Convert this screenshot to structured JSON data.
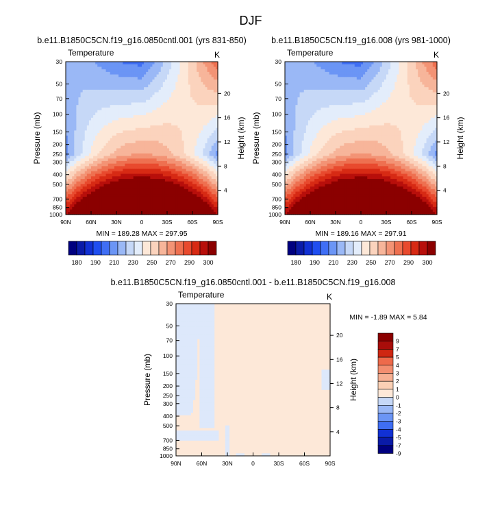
{
  "figure_title": "DJF",
  "colors": {
    "abs": [
      "#00007f",
      "#0a1ba8",
      "#1131d4",
      "#1f4ef0",
      "#3f6ef4",
      "#6b95f5",
      "#9ab8f6",
      "#c6d8f7",
      "#e3edfb",
      "#fde8d8",
      "#fbd3bd",
      "#f7b59a",
      "#f39375",
      "#ee7050",
      "#e84a2e",
      "#d72a14",
      "#b80f0b",
      "#8b0000"
    ],
    "diff": [
      "#00007f",
      "#0a1ba8",
      "#1131d4",
      "#1f4ef0",
      "#3f6ef4",
      "#6b95f5",
      "#9ab8f6",
      "#c6d8f7",
      "#dde8fb",
      "#fde8d8",
      "#fbd0b5",
      "#f7b093",
      "#f38e70",
      "#ee6a4b",
      "#e8482c",
      "#cf2712",
      "#a80d0a",
      "#8b0000"
    ]
  },
  "chart_data": [
    {
      "id": "panel_a",
      "type": "heatmap",
      "title": "b.e11.B1850C5CN.f19_g16.0850cntl.001 (yrs 831-850)",
      "left_label": "Temperature",
      "right_label": "K",
      "ylabel": "Pressure (mb)",
      "y2label": "Height (km)",
      "x_ticks": [
        "90N",
        "60N",
        "30N",
        "0",
        "30S",
        "60S",
        "90S"
      ],
      "y_ticks": [
        "30",
        "50",
        "70",
        "100",
        "150",
        "200",
        "250",
        "300",
        "400",
        "500",
        "700",
        "850",
        "1000"
      ],
      "y2_ticks": [
        "20",
        "16",
        "12",
        "8",
        "4"
      ],
      "stats": "MIN = 189.28  MAX = 297.95",
      "colorbar_labels": [
        "180",
        "190",
        "210",
        "230",
        "250",
        "270",
        "290",
        "300"
      ],
      "min": 189.28,
      "max": 297.95
    },
    {
      "id": "panel_b",
      "type": "heatmap",
      "title": "b.e11.B1850C5CN.f19_g16.008 (yrs 981-1000)",
      "left_label": "Temperature",
      "right_label": "K",
      "ylabel": "Pressure (mb)",
      "y2label": "Height (km)",
      "x_ticks": [
        "90N",
        "60N",
        "30N",
        "0",
        "30S",
        "60S",
        "90S"
      ],
      "y_ticks": [
        "30",
        "50",
        "70",
        "100",
        "150",
        "200",
        "250",
        "300",
        "400",
        "500",
        "700",
        "850",
        "1000"
      ],
      "y2_ticks": [
        "20",
        "16",
        "12",
        "8",
        "4"
      ],
      "stats": "MIN = 189.16  MAX = 297.91",
      "colorbar_labels": [
        "180",
        "190",
        "210",
        "230",
        "250",
        "270",
        "290",
        "300"
      ],
      "min": 189.16,
      "max": 297.91
    },
    {
      "id": "panel_diff",
      "type": "heatmap",
      "title": "b.e11.B1850C5CN.f19_g16.0850cntl.001 - b.e11.B1850C5CN.f19_g16.008",
      "left_label": "Temperature",
      "right_label": "K",
      "ylabel": "Pressure (mb)",
      "y2label": "Height (km)",
      "x_ticks": [
        "90N",
        "60N",
        "30N",
        "0",
        "30S",
        "60S",
        "90S"
      ],
      "y_ticks": [
        "30",
        "50",
        "70",
        "100",
        "150",
        "200",
        "250",
        "300",
        "400",
        "500",
        "700",
        "850",
        "1000"
      ],
      "y2_ticks": [
        "20",
        "16",
        "12",
        "8",
        "4"
      ],
      "stats": "MIN = -1.89  MAX =  5.84",
      "colorbar_labels": [
        "9",
        "7",
        "5",
        "4",
        "3",
        "2",
        "1",
        "0",
        "-1",
        "-2",
        "-3",
        "-4",
        "-5",
        "-7",
        "-9"
      ],
      "min": -1.89,
      "max": 5.84
    }
  ]
}
